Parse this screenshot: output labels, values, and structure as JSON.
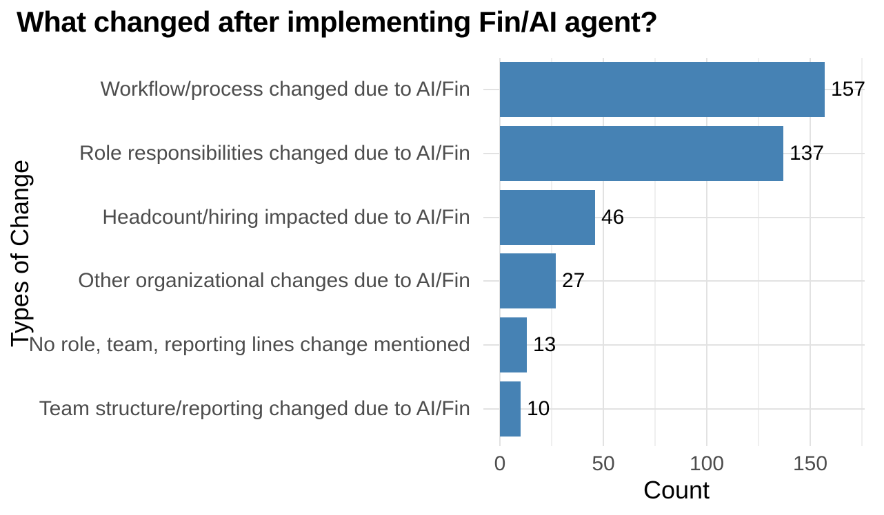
{
  "chart_data": {
    "type": "bar",
    "orientation": "horizontal",
    "title": "What changed after implementing Fin/AI agent?",
    "xlabel": "Count",
    "ylabel": "Types of Change",
    "categories": [
      "Workflow/process changed due to AI/Fin",
      "Role responsibilities changed due to AI/Fin",
      "Headcount/hiring impacted due to AI/Fin",
      "Other organizational changes due to AI/Fin",
      "No role, team, reporting lines change mentioned",
      "Team structure/reporting changed due to AI/Fin"
    ],
    "values": [
      157,
      137,
      46,
      27,
      13,
      10
    ],
    "value_labels_shown": true,
    "xlim": [
      0,
      175
    ],
    "xticks": [
      0,
      50,
      100,
      150
    ],
    "xticks_minor": [
      25,
      75,
      125,
      175
    ],
    "grid": "on",
    "legend": "none",
    "colors": {
      "bar": "#4682B4",
      "grid_major": "#E2E2E2",
      "grid_minor": "#EFEFEF",
      "axis_text": "#4D4D4D",
      "title_text": "#000000",
      "background": "#FFFFFF"
    }
  }
}
